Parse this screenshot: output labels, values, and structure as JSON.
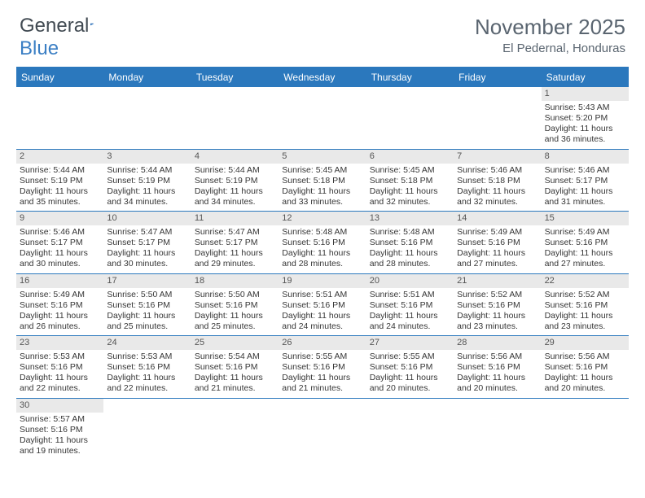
{
  "logo": {
    "text1": "General",
    "text2": "Blue"
  },
  "title": "November 2025",
  "location": "El Pedernal, Honduras",
  "colors": {
    "header_bg": "#2b78bd",
    "header_text": "#ffffff",
    "daynum_bg": "#e9e9e9",
    "text": "#363636",
    "title_text": "#5a6570",
    "logo_gray": "#414a52",
    "logo_blue": "#3b7fc4",
    "row_border": "#2b78bd"
  },
  "day_labels": [
    "Sunday",
    "Monday",
    "Tuesday",
    "Wednesday",
    "Thursday",
    "Friday",
    "Saturday"
  ],
  "weeks": [
    [
      null,
      null,
      null,
      null,
      null,
      null,
      {
        "n": "1",
        "sunrise": "Sunrise: 5:43 AM",
        "sunset": "Sunset: 5:20 PM",
        "daylight": "Daylight: 11 hours and 36 minutes."
      }
    ],
    [
      {
        "n": "2",
        "sunrise": "Sunrise: 5:44 AM",
        "sunset": "Sunset: 5:19 PM",
        "daylight": "Daylight: 11 hours and 35 minutes."
      },
      {
        "n": "3",
        "sunrise": "Sunrise: 5:44 AM",
        "sunset": "Sunset: 5:19 PM",
        "daylight": "Daylight: 11 hours and 34 minutes."
      },
      {
        "n": "4",
        "sunrise": "Sunrise: 5:44 AM",
        "sunset": "Sunset: 5:19 PM",
        "daylight": "Daylight: 11 hours and 34 minutes."
      },
      {
        "n": "5",
        "sunrise": "Sunrise: 5:45 AM",
        "sunset": "Sunset: 5:18 PM",
        "daylight": "Daylight: 11 hours and 33 minutes."
      },
      {
        "n": "6",
        "sunrise": "Sunrise: 5:45 AM",
        "sunset": "Sunset: 5:18 PM",
        "daylight": "Daylight: 11 hours and 32 minutes."
      },
      {
        "n": "7",
        "sunrise": "Sunrise: 5:46 AM",
        "sunset": "Sunset: 5:18 PM",
        "daylight": "Daylight: 11 hours and 32 minutes."
      },
      {
        "n": "8",
        "sunrise": "Sunrise: 5:46 AM",
        "sunset": "Sunset: 5:17 PM",
        "daylight": "Daylight: 11 hours and 31 minutes."
      }
    ],
    [
      {
        "n": "9",
        "sunrise": "Sunrise: 5:46 AM",
        "sunset": "Sunset: 5:17 PM",
        "daylight": "Daylight: 11 hours and 30 minutes."
      },
      {
        "n": "10",
        "sunrise": "Sunrise: 5:47 AM",
        "sunset": "Sunset: 5:17 PM",
        "daylight": "Daylight: 11 hours and 30 minutes."
      },
      {
        "n": "11",
        "sunrise": "Sunrise: 5:47 AM",
        "sunset": "Sunset: 5:17 PM",
        "daylight": "Daylight: 11 hours and 29 minutes."
      },
      {
        "n": "12",
        "sunrise": "Sunrise: 5:48 AM",
        "sunset": "Sunset: 5:16 PM",
        "daylight": "Daylight: 11 hours and 28 minutes."
      },
      {
        "n": "13",
        "sunrise": "Sunrise: 5:48 AM",
        "sunset": "Sunset: 5:16 PM",
        "daylight": "Daylight: 11 hours and 28 minutes."
      },
      {
        "n": "14",
        "sunrise": "Sunrise: 5:49 AM",
        "sunset": "Sunset: 5:16 PM",
        "daylight": "Daylight: 11 hours and 27 minutes."
      },
      {
        "n": "15",
        "sunrise": "Sunrise: 5:49 AM",
        "sunset": "Sunset: 5:16 PM",
        "daylight": "Daylight: 11 hours and 27 minutes."
      }
    ],
    [
      {
        "n": "16",
        "sunrise": "Sunrise: 5:49 AM",
        "sunset": "Sunset: 5:16 PM",
        "daylight": "Daylight: 11 hours and 26 minutes."
      },
      {
        "n": "17",
        "sunrise": "Sunrise: 5:50 AM",
        "sunset": "Sunset: 5:16 PM",
        "daylight": "Daylight: 11 hours and 25 minutes."
      },
      {
        "n": "18",
        "sunrise": "Sunrise: 5:50 AM",
        "sunset": "Sunset: 5:16 PM",
        "daylight": "Daylight: 11 hours and 25 minutes."
      },
      {
        "n": "19",
        "sunrise": "Sunrise: 5:51 AM",
        "sunset": "Sunset: 5:16 PM",
        "daylight": "Daylight: 11 hours and 24 minutes."
      },
      {
        "n": "20",
        "sunrise": "Sunrise: 5:51 AM",
        "sunset": "Sunset: 5:16 PM",
        "daylight": "Daylight: 11 hours and 24 minutes."
      },
      {
        "n": "21",
        "sunrise": "Sunrise: 5:52 AM",
        "sunset": "Sunset: 5:16 PM",
        "daylight": "Daylight: 11 hours and 23 minutes."
      },
      {
        "n": "22",
        "sunrise": "Sunrise: 5:52 AM",
        "sunset": "Sunset: 5:16 PM",
        "daylight": "Daylight: 11 hours and 23 minutes."
      }
    ],
    [
      {
        "n": "23",
        "sunrise": "Sunrise: 5:53 AM",
        "sunset": "Sunset: 5:16 PM",
        "daylight": "Daylight: 11 hours and 22 minutes."
      },
      {
        "n": "24",
        "sunrise": "Sunrise: 5:53 AM",
        "sunset": "Sunset: 5:16 PM",
        "daylight": "Daylight: 11 hours and 22 minutes."
      },
      {
        "n": "25",
        "sunrise": "Sunrise: 5:54 AM",
        "sunset": "Sunset: 5:16 PM",
        "daylight": "Daylight: 11 hours and 21 minutes."
      },
      {
        "n": "26",
        "sunrise": "Sunrise: 5:55 AM",
        "sunset": "Sunset: 5:16 PM",
        "daylight": "Daylight: 11 hours and 21 minutes."
      },
      {
        "n": "27",
        "sunrise": "Sunrise: 5:55 AM",
        "sunset": "Sunset: 5:16 PM",
        "daylight": "Daylight: 11 hours and 20 minutes."
      },
      {
        "n": "28",
        "sunrise": "Sunrise: 5:56 AM",
        "sunset": "Sunset: 5:16 PM",
        "daylight": "Daylight: 11 hours and 20 minutes."
      },
      {
        "n": "29",
        "sunrise": "Sunrise: 5:56 AM",
        "sunset": "Sunset: 5:16 PM",
        "daylight": "Daylight: 11 hours and 20 minutes."
      }
    ],
    [
      {
        "n": "30",
        "sunrise": "Sunrise: 5:57 AM",
        "sunset": "Sunset: 5:16 PM",
        "daylight": "Daylight: 11 hours and 19 minutes."
      },
      null,
      null,
      null,
      null,
      null,
      null
    ]
  ]
}
